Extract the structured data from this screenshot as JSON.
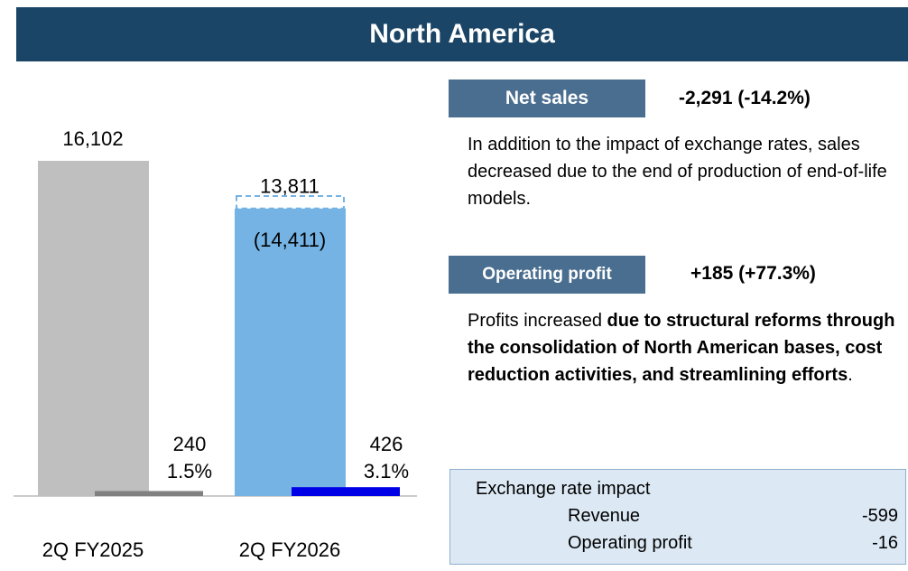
{
  "header": {
    "title": "North America"
  },
  "chart_data": {
    "type": "bar",
    "categories": [
      "2Q FY2025",
      "2Q FY2026"
    ],
    "series": [
      {
        "name": "Net sales",
        "colors": [
          "#bfbfbf",
          "#74b3e3"
        ],
        "values": [
          16102,
          13811
        ],
        "value_labels": [
          "16,102",
          "13,811"
        ]
      },
      {
        "name": "Operating profit",
        "colors": [
          "#808080",
          "#0000e6"
        ],
        "values": [
          240,
          426
        ],
        "value_labels": [
          "240",
          "426"
        ],
        "margins": [
          1.5,
          3.1
        ],
        "margin_labels": [
          "1.5%",
          "3.1%"
        ]
      }
    ],
    "reference": {
      "category": 1,
      "value": 14411,
      "label": "(14,411)"
    }
  },
  "net_sales": {
    "label": "Net sales",
    "change": "-2,291 (-14.2%)",
    "description": "In addition to the impact of exchange rates, sales decreased due to the end of production of end-of-life models."
  },
  "operating_profit": {
    "label": "Operating profit",
    "change": "+185 (+77.3%)",
    "description": [
      {
        "text": "Profits increased ",
        "bold": false
      },
      {
        "text": "due to structural reforms through the consolidation of North American bases, cost reduction activities, and streamlining efforts",
        "bold": true
      },
      {
        "text": ".",
        "bold": false
      }
    ]
  },
  "exchange": {
    "title": "Exchange rate impact",
    "rows": [
      [
        "Revenue",
        "-599"
      ],
      [
        "Operating profit",
        "-16"
      ]
    ]
  }
}
